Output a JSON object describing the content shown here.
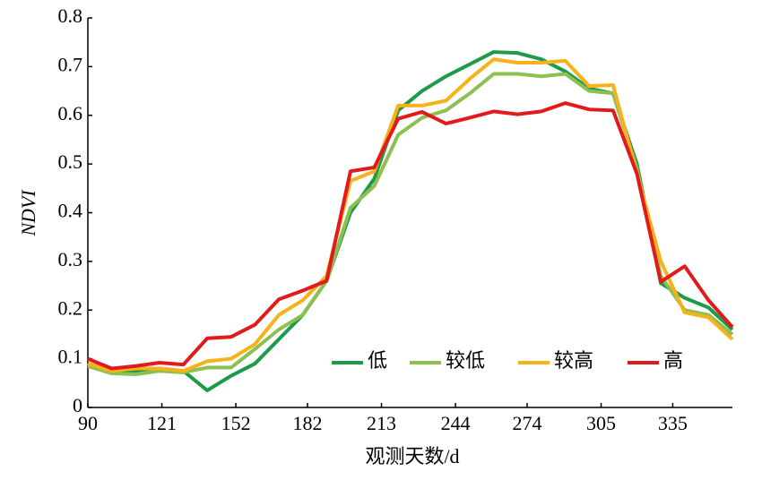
{
  "chart_data": {
    "type": "line",
    "x_label": "观测天数/d",
    "y_label": "NDVI",
    "x": [
      90,
      100,
      110,
      120,
      130,
      140,
      150,
      160,
      170,
      180,
      190,
      200,
      210,
      220,
      230,
      240,
      250,
      260,
      270,
      280,
      290,
      300,
      310,
      320,
      330,
      340,
      350,
      360
    ],
    "xlim": [
      90,
      360
    ],
    "xticks": [
      90,
      121,
      152,
      182,
      213,
      244,
      274,
      305,
      335
    ],
    "ylim": [
      0,
      0.8
    ],
    "yticks": [
      0,
      0.1,
      0.2,
      0.3,
      0.4,
      0.5,
      0.6,
      0.7,
      0.8
    ],
    "legend": "lower right",
    "series": [
      {
        "name": "低",
        "color": "#1e9a4a",
        "values": [
          0.09,
          0.075,
          0.075,
          0.08,
          0.075,
          0.035,
          0.065,
          0.09,
          0.14,
          0.19,
          0.26,
          0.4,
          0.47,
          0.61,
          0.65,
          0.68,
          0.705,
          0.73,
          0.728,
          0.715,
          0.69,
          0.655,
          0.645,
          0.5,
          0.255,
          0.225,
          0.205,
          0.16
        ]
      },
      {
        "name": "较低",
        "color": "#8cc152",
        "values": [
          0.085,
          0.07,
          0.068,
          0.075,
          0.072,
          0.082,
          0.082,
          0.12,
          0.16,
          0.19,
          0.26,
          0.41,
          0.455,
          0.56,
          0.595,
          0.61,
          0.645,
          0.685,
          0.685,
          0.68,
          0.685,
          0.65,
          0.645,
          0.49,
          0.27,
          0.2,
          0.19,
          0.15
        ]
      },
      {
        "name": "较高",
        "color": "#f5b21b",
        "values": [
          0.09,
          0.075,
          0.08,
          0.08,
          0.075,
          0.095,
          0.1,
          0.13,
          0.19,
          0.22,
          0.27,
          0.465,
          0.485,
          0.62,
          0.62,
          0.63,
          0.675,
          0.715,
          0.708,
          0.708,
          0.712,
          0.66,
          0.662,
          0.48,
          0.3,
          0.195,
          0.185,
          0.14
        ]
      },
      {
        "name": "高",
        "color": "#e31a1c",
        "values": [
          0.1,
          0.08,
          0.085,
          0.092,
          0.088,
          0.142,
          0.145,
          0.17,
          0.222,
          0.24,
          0.26,
          0.485,
          0.493,
          0.593,
          0.607,
          0.583,
          0.595,
          0.608,
          0.602,
          0.608,
          0.625,
          0.612,
          0.61,
          0.48,
          0.258,
          0.29,
          0.22,
          0.165
        ]
      }
    ]
  }
}
